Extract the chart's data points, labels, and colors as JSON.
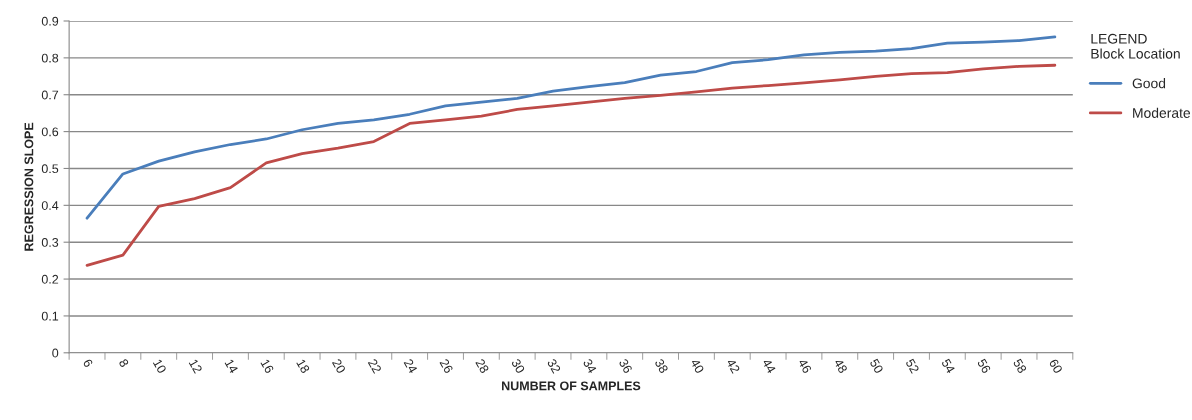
{
  "chart_data": {
    "type": "line",
    "xlabel": "NUMBER OF SAMPLES",
    "ylabel": "REGRESSION SLOPE",
    "legend_title": "LEGEND\nBlock Location",
    "categories": [
      "6",
      "8",
      "10",
      "12",
      "14",
      "16",
      "18",
      "20",
      "22",
      "24",
      "26",
      "28",
      "30",
      "32",
      "34",
      "36",
      "38",
      "40",
      "42",
      "44",
      "46",
      "48",
      "50",
      "52",
      "54",
      "56",
      "58",
      "60"
    ],
    "series": [
      {
        "name": "Good",
        "color": "#4a7ebb",
        "values": [
          0.365,
          0.485,
          0.52,
          0.545,
          0.565,
          0.58,
          0.605,
          0.622,
          0.632,
          0.647,
          0.67,
          0.68,
          0.69,
          0.71,
          0.722,
          0.733,
          0.753,
          0.763,
          0.787,
          0.795,
          0.808,
          0.815,
          0.818,
          0.825,
          0.84,
          0.843,
          0.847,
          0.857
        ]
      },
      {
        "name": "Moderate",
        "color": "#be4b48",
        "values": [
          0.237,
          0.265,
          0.397,
          0.418,
          0.448,
          0.515,
          0.54,
          0.555,
          0.573,
          0.622,
          0.632,
          0.642,
          0.66,
          0.67,
          0.68,
          0.69,
          0.698,
          0.708,
          0.718,
          0.725,
          0.732,
          0.74,
          0.75,
          0.757,
          0.76,
          0.77,
          0.777,
          0.78
        ]
      }
    ],
    "ylim": [
      0,
      0.9
    ],
    "yticks": [
      0,
      0.1,
      0.2,
      0.3,
      0.4,
      0.5,
      0.6,
      0.7,
      0.8,
      0.9
    ],
    "grid": "y",
    "legend": "right",
    "marker": "none",
    "line_style": "solid"
  }
}
